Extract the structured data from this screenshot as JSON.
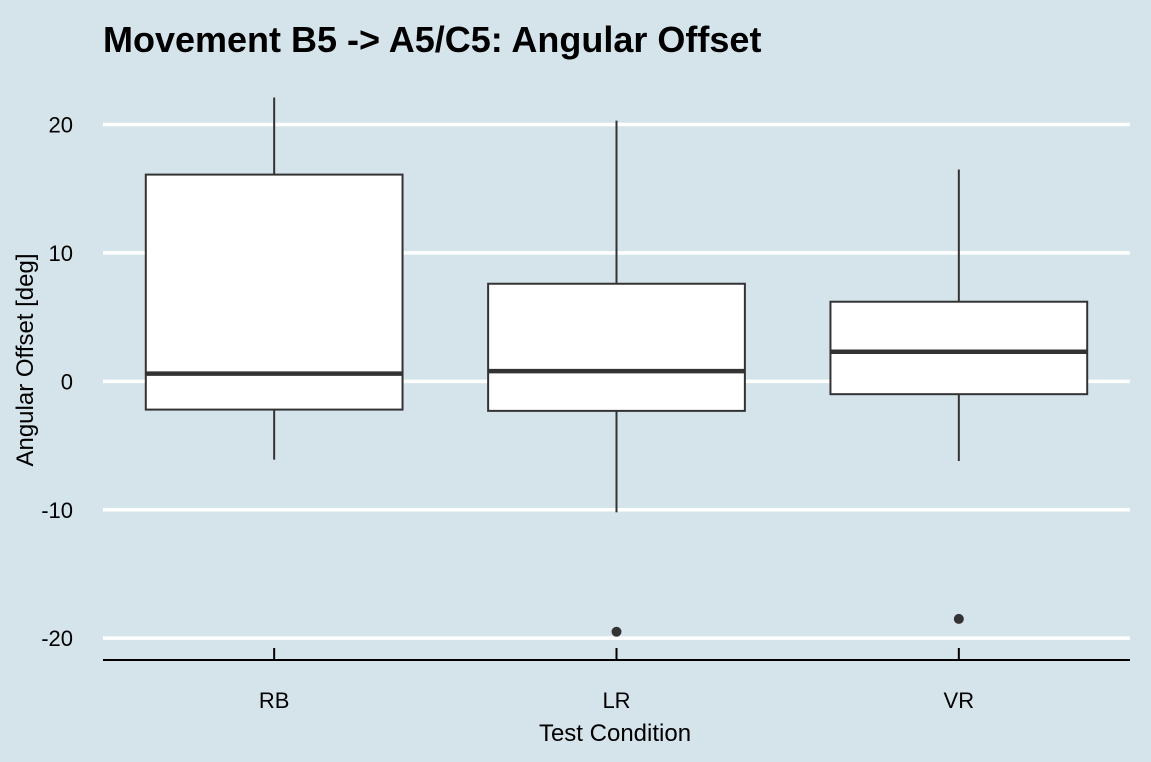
{
  "chart_data": {
    "type": "boxplot",
    "title": "Movement B5 -> A5/C5: Angular Offset",
    "xlabel": "Test Condition",
    "ylabel": "Angular Offset [deg]",
    "ylim": [
      -21.7,
      23.7
    ],
    "yticks": [
      -20,
      -10,
      0,
      10,
      20
    ],
    "grid": "horizontal",
    "categories": [
      "RB",
      "LR",
      "VR"
    ],
    "boxes": [
      {
        "name": "RB",
        "whisker_low": -6.1,
        "q1": -2.2,
        "median": 0.6,
        "q3": 16.1,
        "whisker_high": 22.1,
        "outliers": []
      },
      {
        "name": "LR",
        "whisker_low": -10.2,
        "q1": -2.3,
        "median": 0.8,
        "q3": 7.6,
        "whisker_high": 20.3,
        "outliers": [
          -19.5
        ]
      },
      {
        "name": "VR",
        "whisker_low": -6.2,
        "q1": -1.0,
        "median": 2.3,
        "q3": 6.2,
        "whisker_high": 16.5,
        "outliers": [
          -18.5
        ]
      }
    ],
    "colors": {
      "background": "#d5e4eb",
      "grid": "#ffffff",
      "box_fill": "#ffffff",
      "box_stroke": "#333333",
      "axis": "#000000"
    }
  }
}
